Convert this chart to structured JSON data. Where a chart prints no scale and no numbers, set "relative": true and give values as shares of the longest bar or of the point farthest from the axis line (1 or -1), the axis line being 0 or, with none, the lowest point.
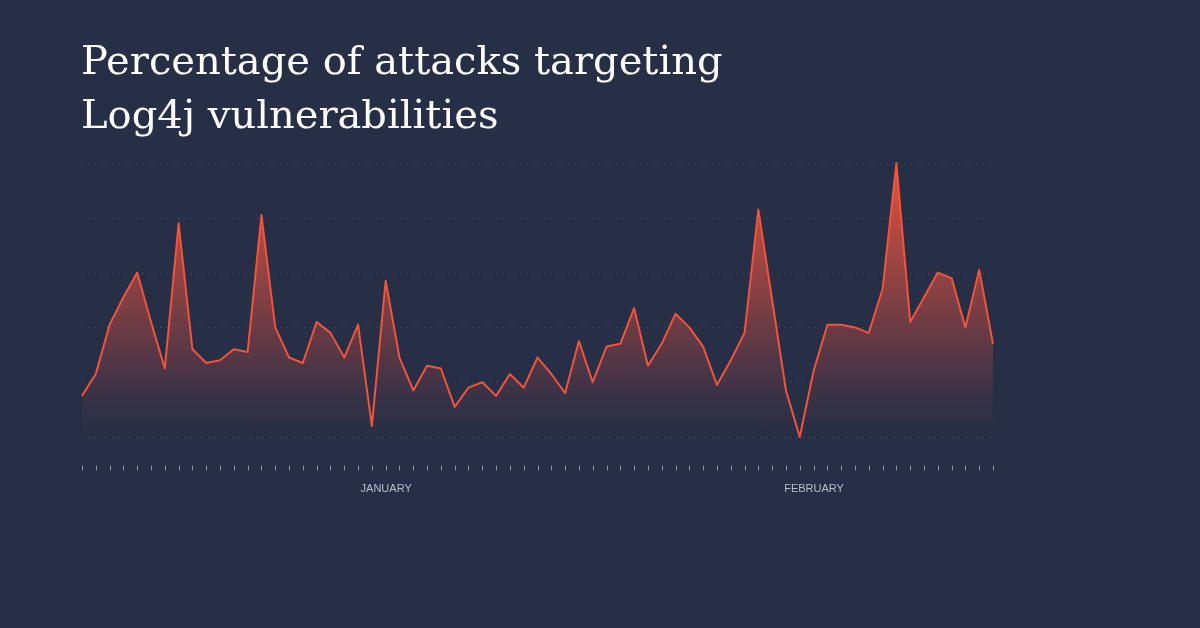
{
  "chart_data": {
    "type": "area",
    "title": "Percentage of attacks targeting Log4j vulnerabilities",
    "relative": true,
    "grid": "y",
    "tick_labels": "x",
    "categories": [
      null,
      null,
      null,
      null,
      null,
      null,
      null,
      null,
      null,
      null,
      null,
      null,
      null,
      null,
      null,
      null,
      null,
      null,
      null,
      null,
      null,
      null,
      "JANUARY",
      null,
      null,
      null,
      null,
      null,
      null,
      null,
      null,
      null,
      null,
      null,
      null,
      null,
      null,
      null,
      null,
      null,
      null,
      null,
      null,
      null,
      null,
      null,
      null,
      null,
      null,
      null,
      null,
      null,
      null,
      "FEBRUARY",
      null,
      null,
      null,
      null,
      null,
      null,
      null,
      null,
      null,
      null,
      null,
      null,
      null
    ],
    "series": [
      {
        "color": "#f0543c",
        "values": [
          0.15,
          0.23,
          0.41,
          0.51,
          0.6,
          0.42,
          0.25,
          0.78,
          0.32,
          0.27,
          0.28,
          0.32,
          0.31,
          0.81,
          0.4,
          0.29,
          0.27,
          0.42,
          0.38,
          0.29,
          0.41,
          0.04,
          0.57,
          0.29,
          0.17,
          0.26,
          0.25,
          0.11,
          0.18,
          0.2,
          0.15,
          0.23,
          0.18,
          0.29,
          0.23,
          0.16,
          0.35,
          0.2,
          0.33,
          0.34,
          0.47,
          0.26,
          0.34,
          0.45,
          0.4,
          0.33,
          0.19,
          0.28,
          0.38,
          0.83,
          0.5,
          0.17,
          0,
          0.24,
          0.41,
          0.41,
          0.4,
          0.38,
          0.54,
          1,
          0.42,
          0.51,
          0.6,
          0.58,
          0.4,
          0.61,
          0.34
        ]
      }
    ]
  }
}
